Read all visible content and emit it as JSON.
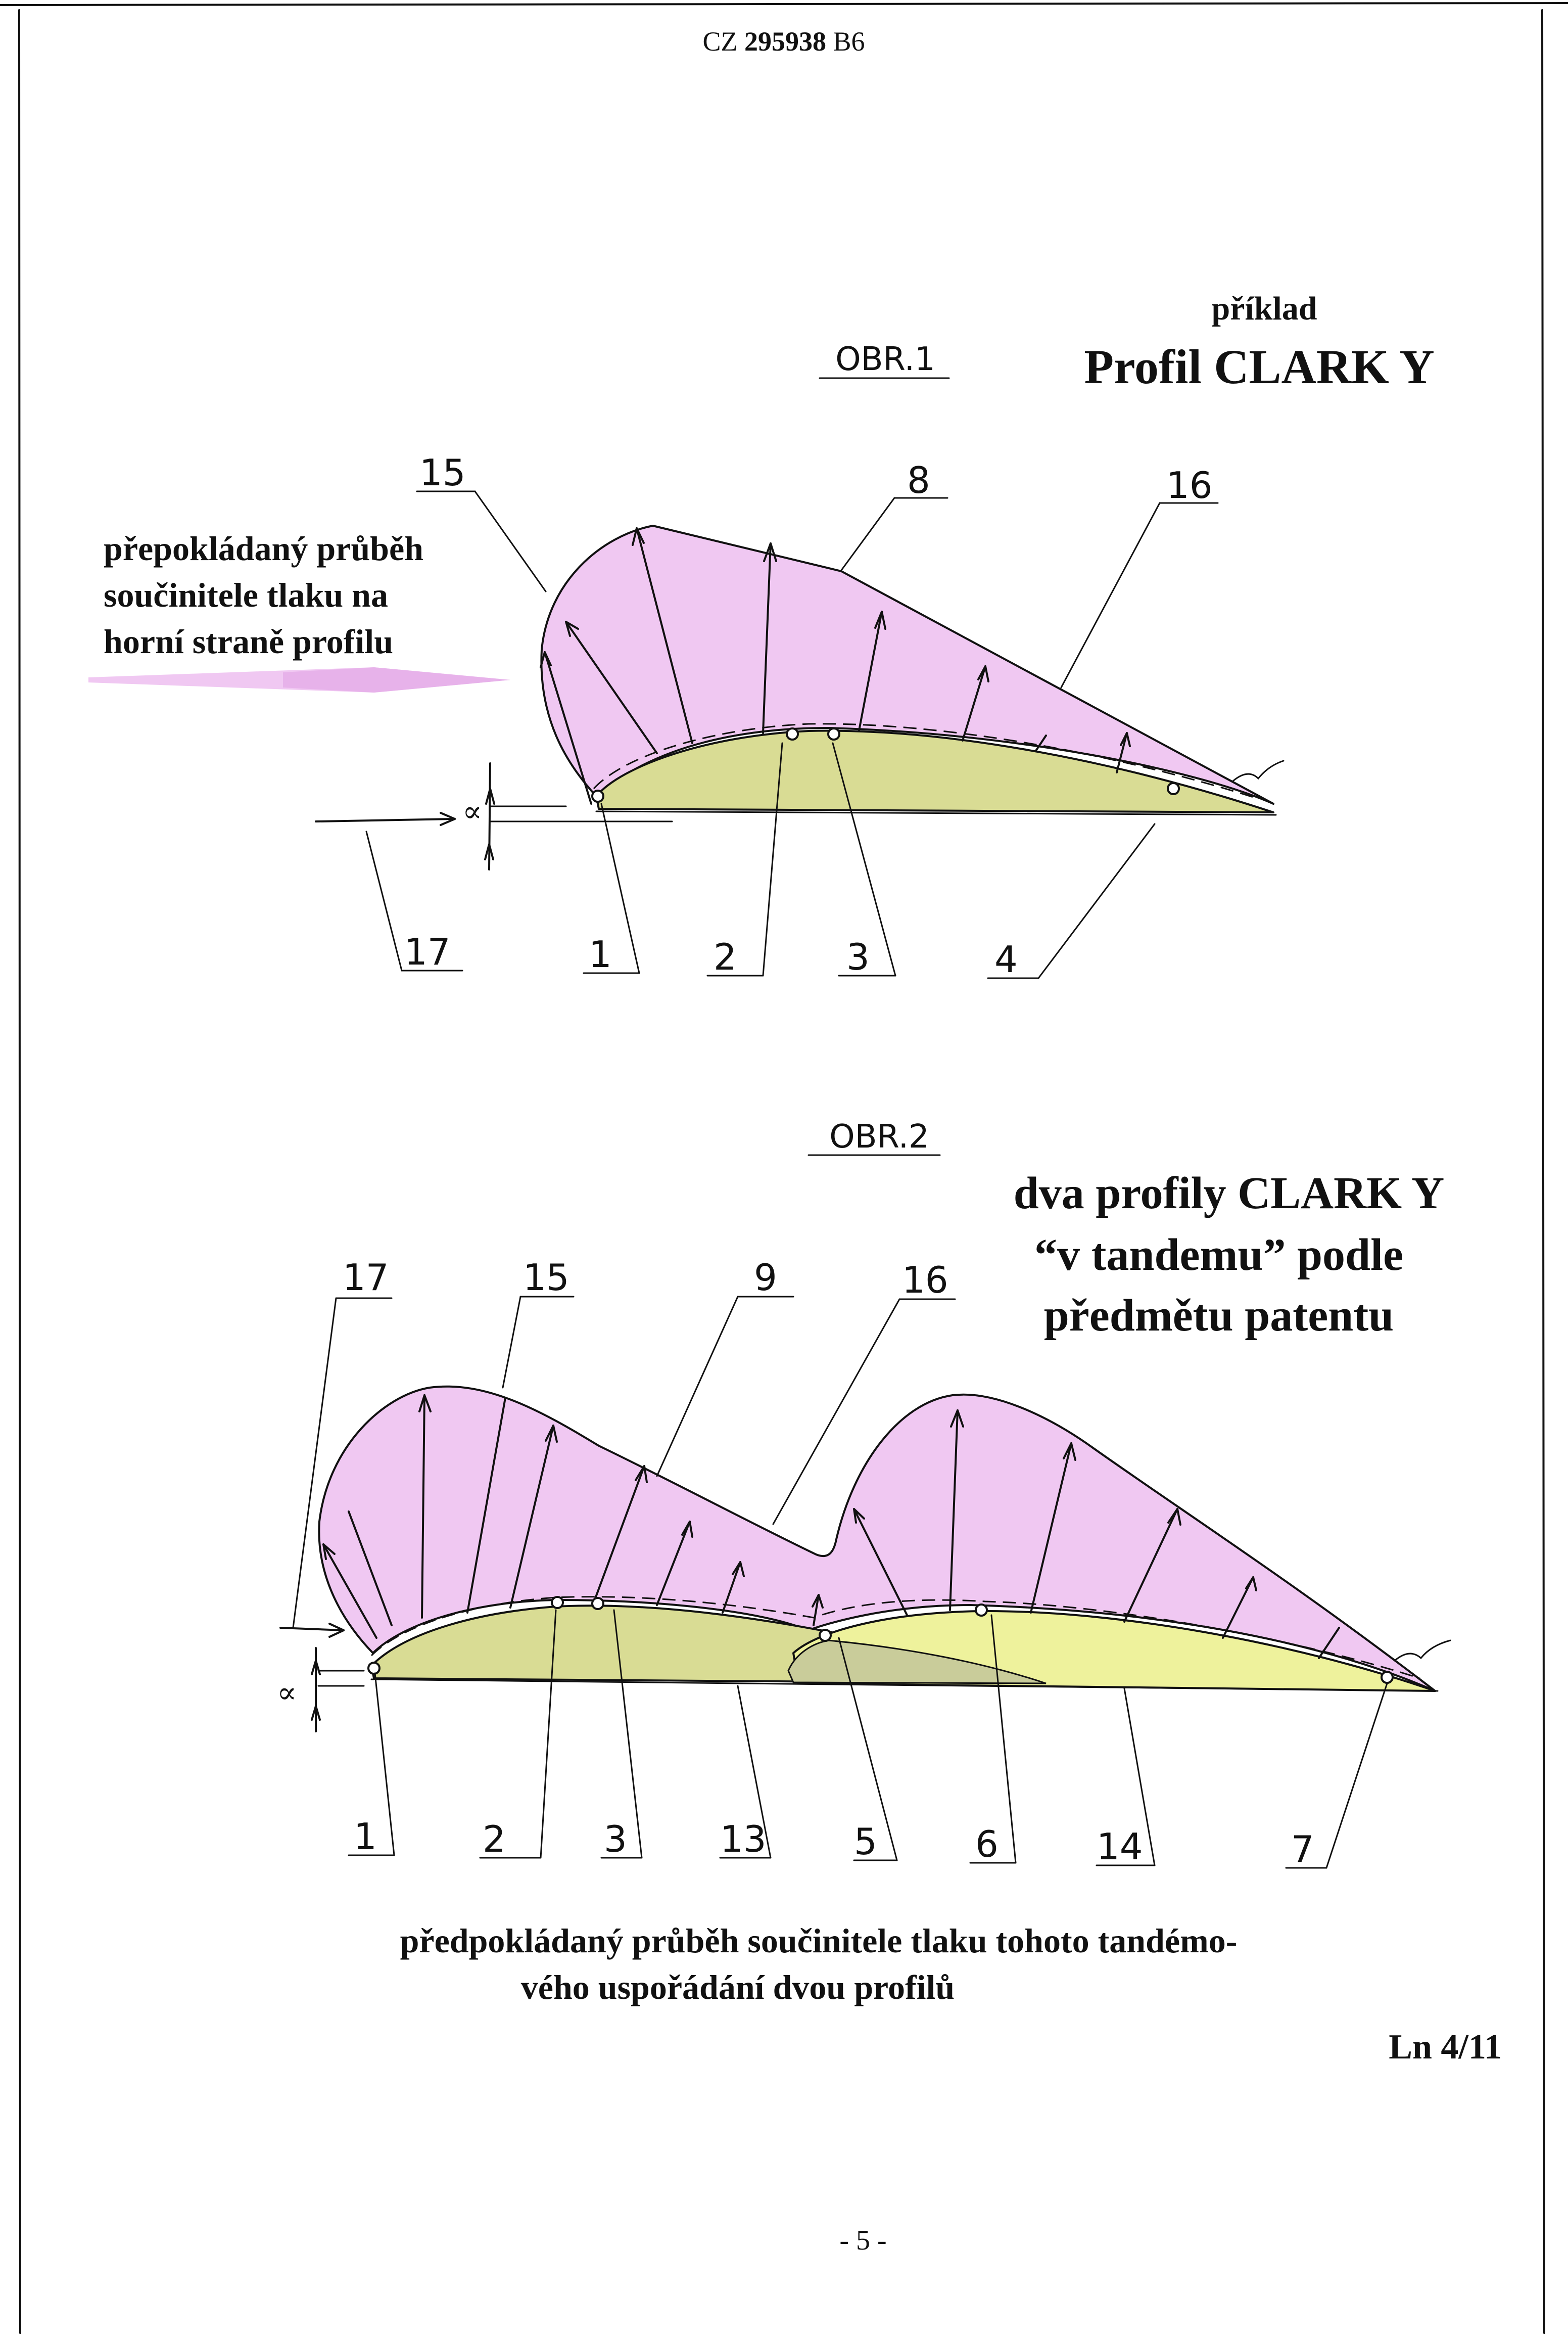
{
  "header": {
    "prefix": "CZ",
    "number": "295938",
    "kind": "B6"
  },
  "figure1": {
    "caption": "OBR.1",
    "example_label": "příklad",
    "profile_title": "Profil  CLARK  Y",
    "note": [
      "přepokládaný průběh",
      "součinitele tlaku na",
      "horní straně profilu"
    ],
    "alpha": "∝",
    "labels": {
      "l15": "15",
      "l8": "8",
      "l16": "16",
      "l17": "17",
      "l1": "1",
      "l2": "2",
      "l3": "3",
      "l4": "4"
    }
  },
  "figure2": {
    "caption": "OBR.2",
    "title": [
      "dva profily CLARK Y",
      "“v tandemu” podle",
      "předmětu patentu"
    ],
    "alpha": "∝",
    "labels": {
      "l17": "17",
      "l15": "15",
      "l9": "9",
      "l16": "16",
      "l1": "1",
      "l2": "2",
      "l3": "3",
      "l13": "13",
      "l5": "5",
      "l6": "6",
      "l14": "14",
      "l7": "7"
    },
    "note": [
      "předpokládaný průběh součinitele tlaku tohoto tandémo-",
      "vého uspořádání dvou profilů"
    ]
  },
  "sheet_ref": "Ln 4/11",
  "page_number": "- 5 -",
  "colors": {
    "pressure": "#f0c8f2",
    "wing": "#d9dc94",
    "wing_rear": "#eef29c",
    "arrow": "#f0c8f2"
  }
}
